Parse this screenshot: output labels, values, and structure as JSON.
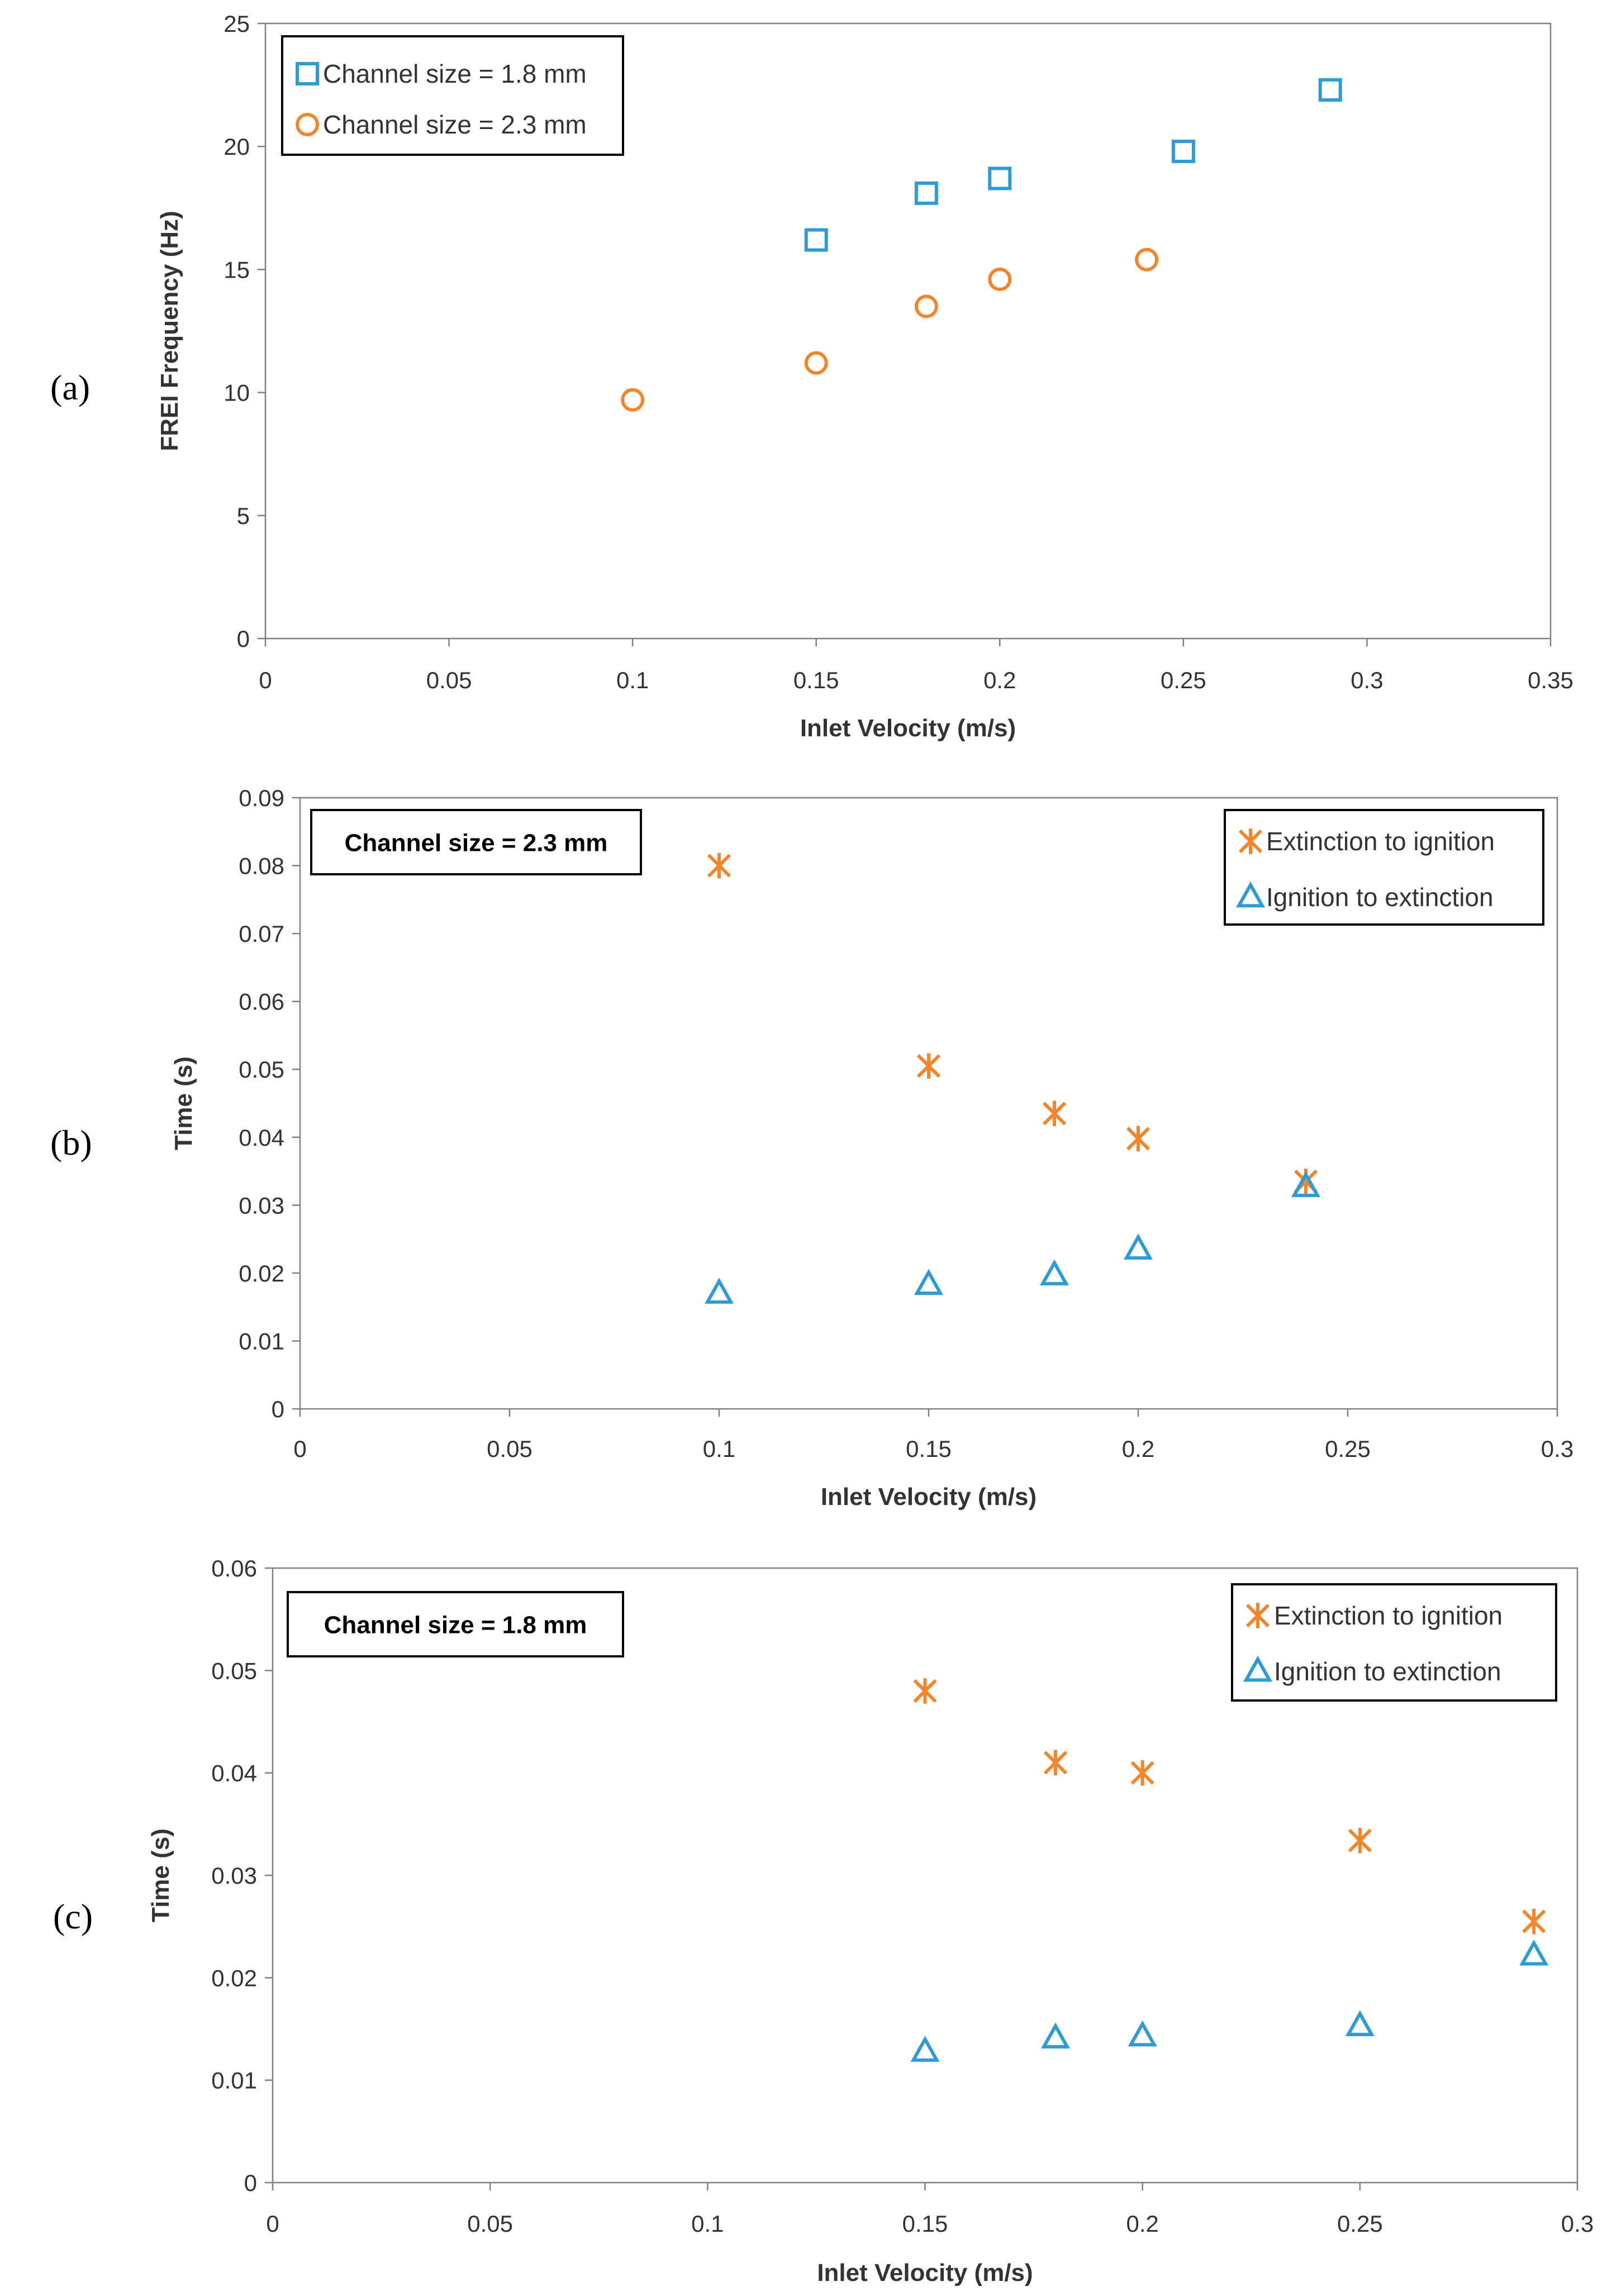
{
  "colors": {
    "blue": "#2E9BD6",
    "orange": "#F5852B",
    "axis": "#808080",
    "text": "#333333"
  },
  "chart_data": [
    {
      "panel_label": "(a)",
      "type": "scatter",
      "title": "",
      "xlabel": "Inlet Velocity (m/s)",
      "ylabel": "FREI Frequency (Hz)",
      "xlim": [
        0,
        0.35
      ],
      "ylim": [
        0,
        25
      ],
      "xticks": [
        0,
        0.05,
        0.1,
        0.15,
        0.2,
        0.25,
        0.3,
        0.35
      ],
      "xtick_labels": [
        "0",
        "0.05",
        "0.1",
        "0.15",
        "0.2",
        "0.25",
        "0.3",
        "0.35"
      ],
      "yticks": [
        0,
        5,
        10,
        15,
        20,
        25
      ],
      "ytick_labels": [
        "0",
        "5",
        "10",
        "15",
        "20",
        "25"
      ],
      "grid": false,
      "legend_position": "top-left",
      "annotation": "",
      "series": [
        {
          "name": "Channel size = 1.8 mm",
          "marker": "square",
          "color": "#2E9BD6",
          "x": [
            0.15,
            0.18,
            0.2,
            0.25,
            0.29
          ],
          "y": [
            16.2,
            18.1,
            18.7,
            19.8,
            22.3
          ]
        },
        {
          "name": "Channel size = 2.3 mm",
          "marker": "circle",
          "color": "#F5852B",
          "x": [
            0.1,
            0.15,
            0.18,
            0.2,
            0.24
          ],
          "y": [
            9.7,
            11.2,
            13.5,
            14.6,
            15.4
          ]
        }
      ]
    },
    {
      "panel_label": "(b)",
      "type": "scatter",
      "title": "",
      "xlabel": "Inlet Velocity (m/s)",
      "ylabel": "Time (s)",
      "xlim": [
        0,
        0.3
      ],
      "ylim": [
        0,
        0.09
      ],
      "xticks": [
        0,
        0.05,
        0.1,
        0.15,
        0.2,
        0.25,
        0.3
      ],
      "xtick_labels": [
        "0",
        "0.05",
        "0.1",
        "0.15",
        "0.2",
        "0.25",
        "0.3"
      ],
      "yticks": [
        0,
        0.01,
        0.02,
        0.03,
        0.04,
        0.05,
        0.06,
        0.07,
        0.08,
        0.09
      ],
      "ytick_labels": [
        "0",
        "0.01",
        "0.02",
        "0.03",
        "0.04",
        "0.05",
        "0.06",
        "0.07",
        "0.08",
        "0.09"
      ],
      "grid": false,
      "legend_position": "top-right",
      "annotation": "Channel size = 2.3 mm",
      "series": [
        {
          "name": "Extinction to ignition",
          "marker": "asterisk",
          "color": "#F5852B",
          "x": [
            0.1,
            0.15,
            0.18,
            0.2,
            0.24
          ],
          "y": [
            0.08,
            0.0505,
            0.0435,
            0.0398,
            0.0335
          ]
        },
        {
          "name": "Ignition to extinction",
          "marker": "triangle",
          "color": "#2E9BD6",
          "x": [
            0.1,
            0.15,
            0.18,
            0.2,
            0.24
          ],
          "y": [
            0.017,
            0.0183,
            0.0197,
            0.0235,
            0.0327
          ]
        }
      ]
    },
    {
      "panel_label": "(c)",
      "type": "scatter",
      "title": "",
      "xlabel": "Inlet Velocity (m/s)",
      "ylabel": "Time (s)",
      "xlim": [
        0,
        0.3
      ],
      "ylim": [
        0,
        0.06
      ],
      "xticks": [
        0,
        0.05,
        0.1,
        0.15,
        0.2,
        0.25,
        0.3
      ],
      "xtick_labels": [
        "0",
        "0.05",
        "0.1",
        "0.15",
        "0.2",
        "0.25",
        "0.3"
      ],
      "yticks": [
        0,
        0.01,
        0.02,
        0.03,
        0.04,
        0.05,
        0.06
      ],
      "ytick_labels": [
        "0",
        "0.01",
        "0.02",
        "0.03",
        "0.04",
        "0.05",
        "0.06"
      ],
      "grid": false,
      "legend_position": "top-right",
      "annotation": "Channel size = 1.8 mm",
      "series": [
        {
          "name": "Extinction to ignition",
          "marker": "asterisk",
          "color": "#F5852B",
          "x": [
            0.15,
            0.18,
            0.2,
            0.25,
            0.29
          ],
          "y": [
            0.048,
            0.041,
            0.04,
            0.0334,
            0.0255
          ]
        },
        {
          "name": "Ignition to extinction",
          "marker": "triangle",
          "color": "#2E9BD6",
          "x": [
            0.15,
            0.18,
            0.2,
            0.25,
            0.29
          ],
          "y": [
            0.0128,
            0.0141,
            0.0143,
            0.0153,
            0.0222
          ]
        }
      ]
    }
  ]
}
